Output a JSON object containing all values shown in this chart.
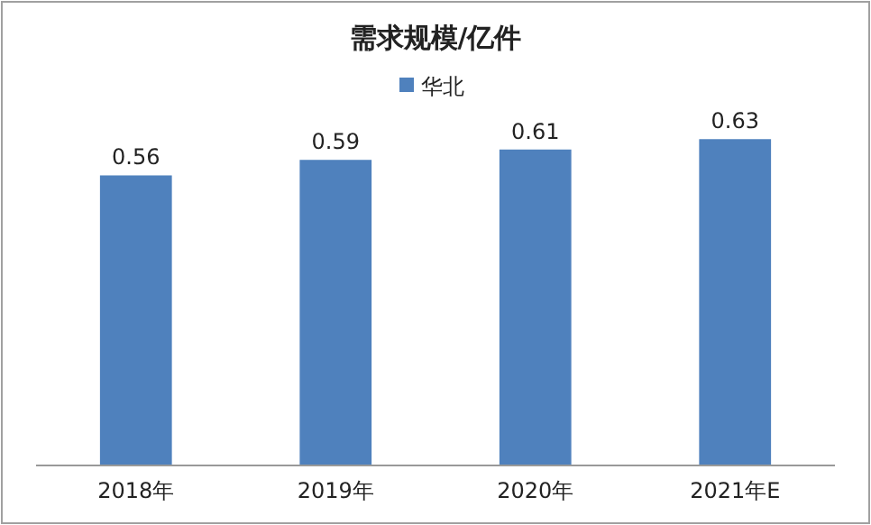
{
  "chart_data": {
    "type": "bar",
    "title": "需求规模/亿件",
    "categories": [
      "2018年",
      "2019年",
      "2020年",
      "2021年E"
    ],
    "series": [
      {
        "name": "华北",
        "color": "#4f81bd",
        "values": [
          0.56,
          0.59,
          0.61,
          0.63
        ]
      }
    ],
    "data_labels": true,
    "legend": "top",
    "grid": false
  }
}
